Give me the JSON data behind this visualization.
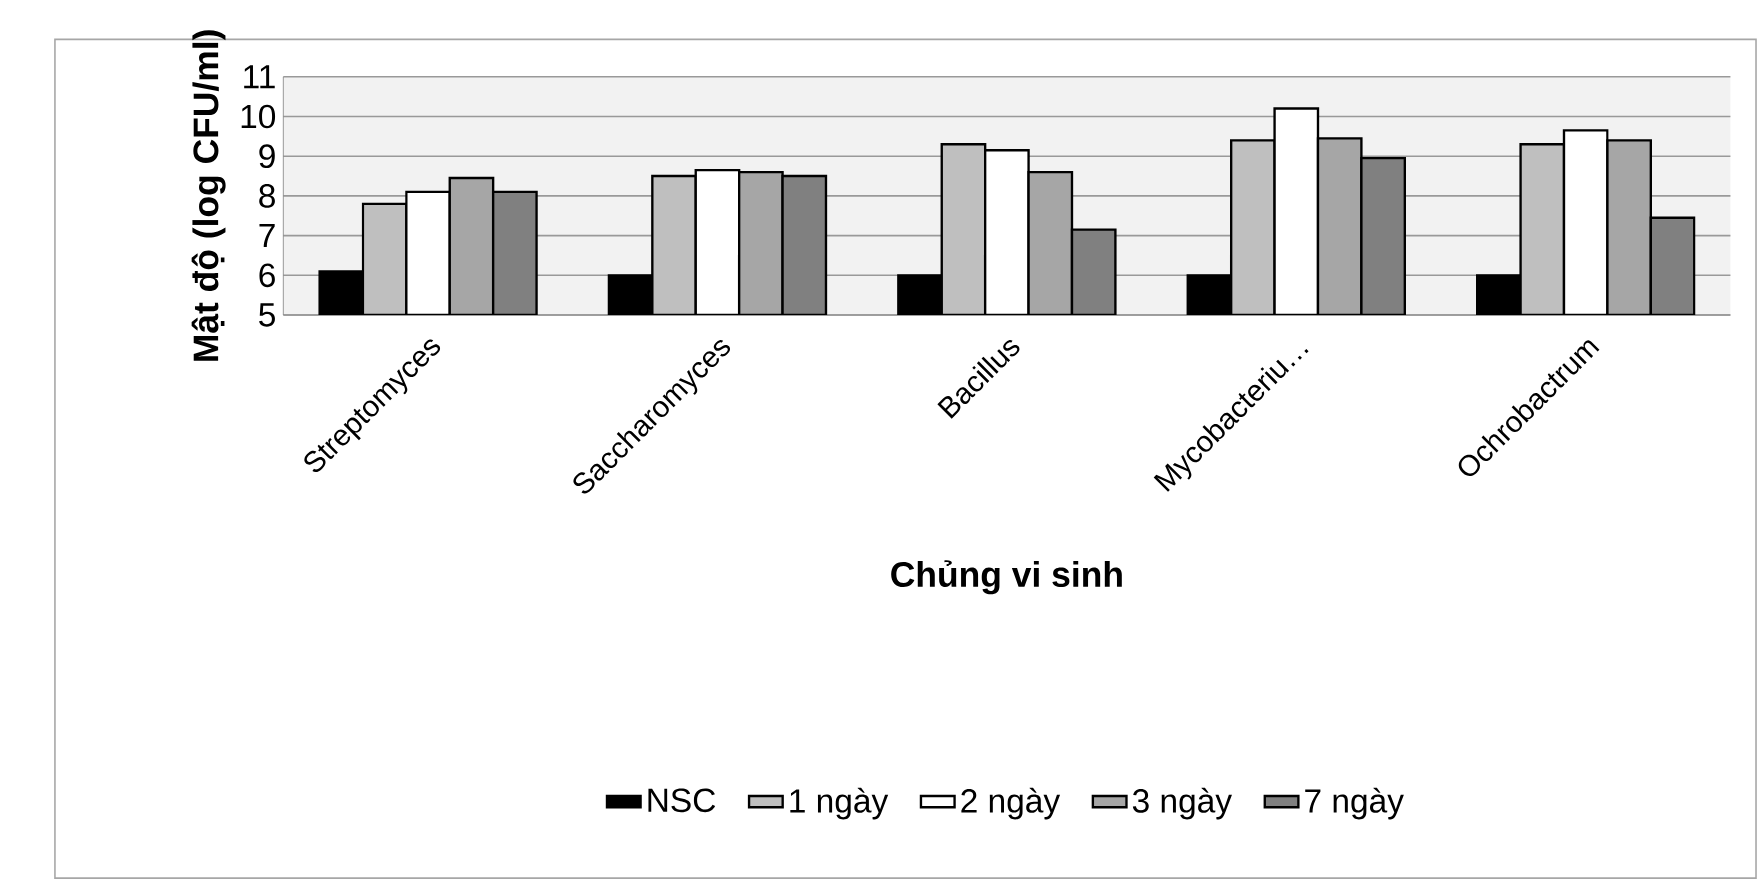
{
  "chart_data": {
    "type": "bar",
    "xlabel": "Chủng vi sinh",
    "ylabel": "Mật độ (log CFU/ml)",
    "categories": [
      "Streptomyces",
      "Saccharomyces",
      "Bacillus",
      "Mycobacteriu…",
      "Ochrobactrum"
    ],
    "series": [
      {
        "name": "NSC",
        "color": "#000000",
        "values": [
          6.1,
          6.0,
          6.0,
          6.0,
          6.0
        ]
      },
      {
        "name": "1 ngày",
        "color": "#bfbfbf",
        "values": [
          7.8,
          8.5,
          9.3,
          9.4,
          9.3
        ]
      },
      {
        "name": "2 ngày",
        "color": "#ffffff",
        "values": [
          8.1,
          8.65,
          9.15,
          10.2,
          9.65
        ]
      },
      {
        "name": "3 ngày",
        "color": "#a6a6a6",
        "values": [
          8.45,
          8.6,
          8.6,
          9.45,
          9.4
        ]
      },
      {
        "name": "7 ngày",
        "color": "#808080",
        "values": [
          8.1,
          8.5,
          7.15,
          8.95,
          7.45
        ]
      }
    ],
    "ylim": [
      5,
      11
    ],
    "yticks": [
      5,
      6,
      7,
      8,
      9,
      10,
      11
    ],
    "grid": "y",
    "legend": "bottom"
  }
}
